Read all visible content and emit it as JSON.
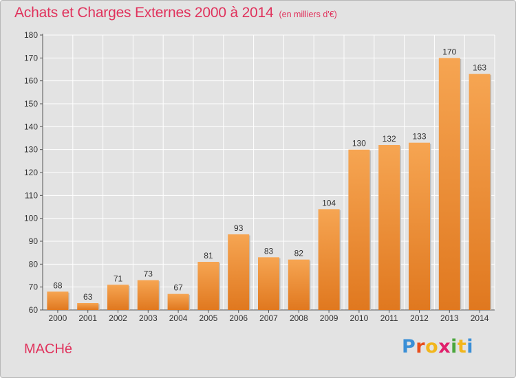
{
  "header": {
    "title": "Achats et Charges Externes 2000 à 2014",
    "unit": "(en milliers d'€)"
  },
  "footer": {
    "commune": "MACHé",
    "brand": "Proxiti"
  },
  "colors": {
    "title": "#e0325c",
    "bar_light": "#f6a552",
    "bar_dark": "#e0781f",
    "grid": "#ffffff",
    "background": "#e3e3e3"
  },
  "chart_data": {
    "type": "bar",
    "title": "Achats et Charges Externes 2000 à 2014",
    "subtitle": "(en milliers d'€)",
    "categories": [
      "2000",
      "2001",
      "2002",
      "2003",
      "2004",
      "2005",
      "2006",
      "2007",
      "2008",
      "2009",
      "2010",
      "2011",
      "2012",
      "2013",
      "2014"
    ],
    "values": [
      68,
      63,
      71,
      73,
      67,
      81,
      93,
      83,
      82,
      104,
      130,
      132,
      133,
      170,
      163
    ],
    "data_labels": [
      "68",
      "63",
      "71",
      "73",
      "67",
      "81",
      "93",
      "83",
      "82",
      "104",
      "130",
      "132",
      "133",
      "170",
      "163"
    ],
    "yticks": [
      "60",
      "70",
      "80",
      "90",
      "100",
      "110",
      "120",
      "130",
      "140",
      "150",
      "160",
      "170",
      "180"
    ],
    "ylim": [
      60,
      180
    ],
    "grid": true,
    "legend": "none"
  }
}
